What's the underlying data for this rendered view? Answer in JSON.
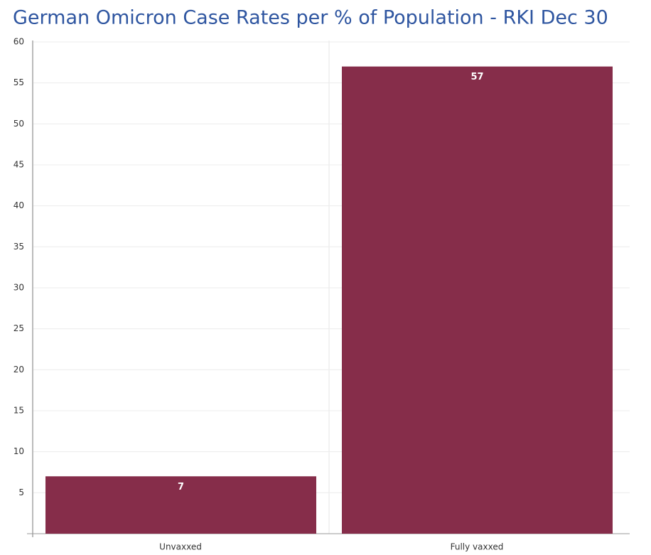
{
  "chart_data": {
    "type": "bar",
    "title": "German Omicron Case Rates per % of Population - RKI Dec 30",
    "categories": [
      "Unvaxxed",
      "Fully vaxxed"
    ],
    "values": [
      7,
      57
    ],
    "color": "#862d4a",
    "ylim": [
      0,
      60
    ],
    "yticks": [
      5,
      10,
      15,
      20,
      25,
      30,
      35,
      40,
      45,
      50,
      55,
      60
    ],
    "grid": true
  }
}
